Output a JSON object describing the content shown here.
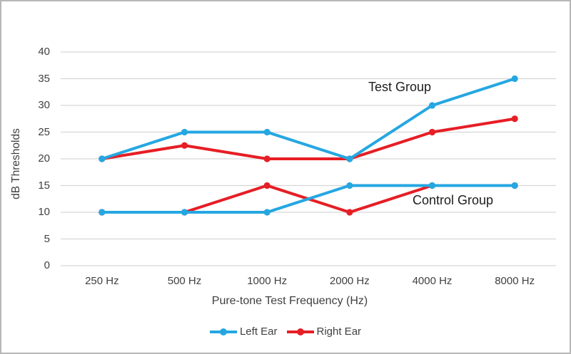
{
  "chart_data": {
    "type": "line",
    "title": "",
    "categories": [
      "250 Hz",
      "500 Hz",
      "1000 Hz",
      "2000 Hz",
      "4000 Hz",
      "8000 Hz"
    ],
    "xlabel": "Pure-tone Test Frequency (Hz)",
    "ylabel": "dB Thresholds",
    "ylim": [
      0,
      40
    ],
    "yticks": [
      0,
      5,
      10,
      15,
      20,
      25,
      30,
      35,
      40
    ],
    "grid": "horizontal-only",
    "legend_position": "bottom",
    "series": [
      {
        "name": "Right Ear",
        "group": "Test Group",
        "color": "#e61e25",
        "values": [
          20,
          22.5,
          20,
          20,
          25,
          27.5
        ]
      },
      {
        "name": "Right Ear",
        "group": "Control Group",
        "color": "#e61e25",
        "values": [
          10,
          10,
          15,
          10,
          15,
          15
        ]
      },
      {
        "name": "Left Ear",
        "group": "Test Group",
        "color": "#25a7e1",
        "values": [
          20,
          25,
          25,
          20,
          30,
          35
        ]
      },
      {
        "name": "Left Ear",
        "group": "Control Group",
        "color": "#25a7e1",
        "values": [
          10,
          10,
          10,
          15,
          15,
          15
        ]
      }
    ],
    "annotations": [
      {
        "text": "Test Group"
      },
      {
        "text": "Control Group"
      }
    ],
    "legend": [
      {
        "label": "Left Ear",
        "color": "#25a7e1"
      },
      {
        "label": "Right Ear",
        "color": "#e61e25"
      }
    ]
  },
  "colors": {
    "grid": "#d6d6d6",
    "tick_text": "#404040",
    "annotation_text": "#1c1c1c",
    "frame_border": "#b7b7b7"
  }
}
